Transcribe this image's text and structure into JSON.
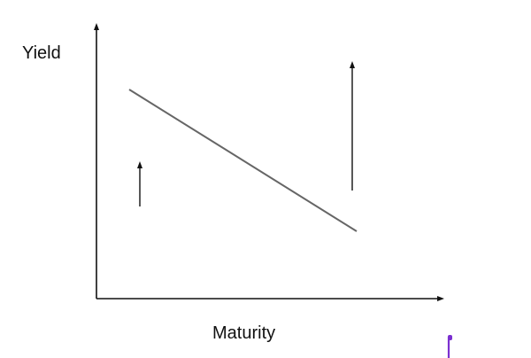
{
  "diagram": {
    "y_axis_label": "Yield",
    "x_axis_label": "Maturity",
    "colors": {
      "axes": "#111111",
      "curve": "#666666",
      "arrows": "#111111",
      "marker": "#7b2fd0"
    }
  }
}
